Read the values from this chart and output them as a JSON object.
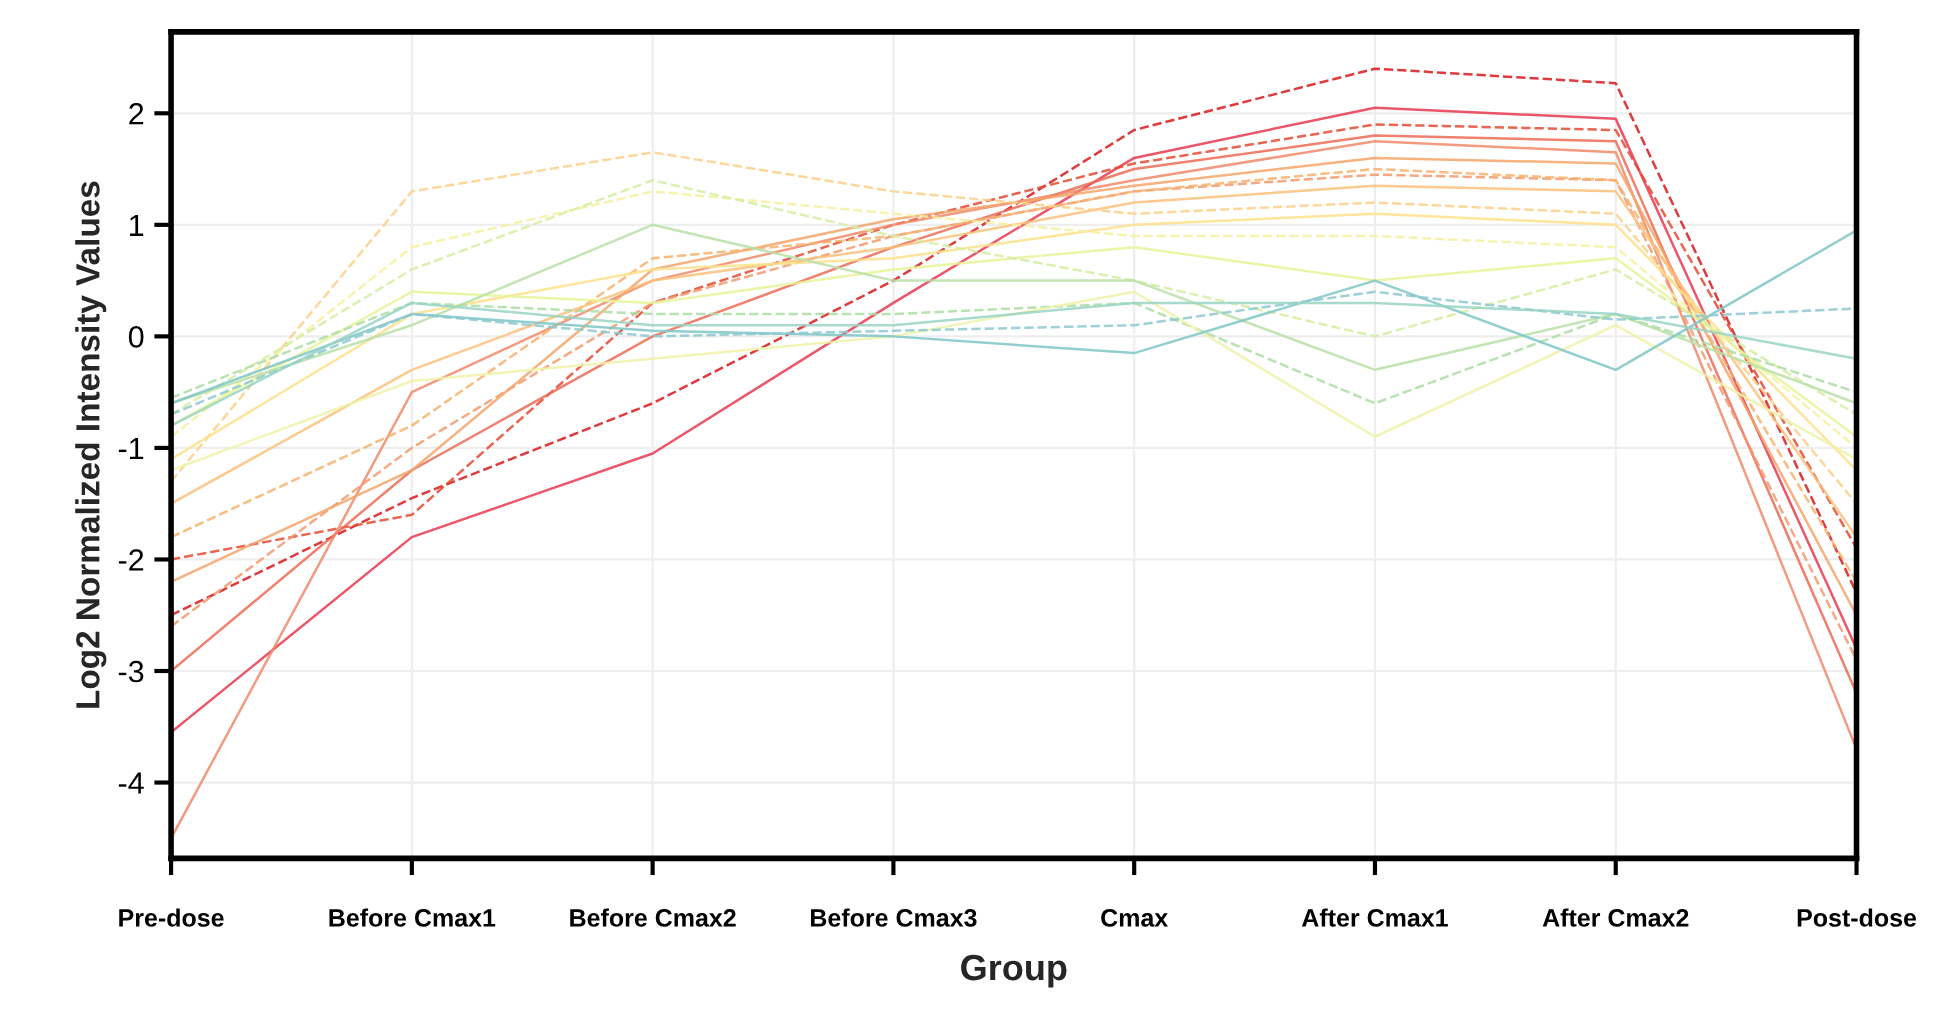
{
  "chart_data": {
    "type": "line",
    "xlabel": "Group",
    "ylabel": "Log2 Normalized Intensity Values",
    "categories": [
      "Pre-dose",
      "Before Cmax1",
      "Before Cmax2",
      "Before Cmax3",
      "Cmax",
      "After Cmax1",
      "After Cmax2",
      "Post-dose"
    ],
    "ylim": [
      -4.68,
      2.73
    ],
    "yticks": [
      -4,
      -3,
      -2,
      -1,
      0,
      1,
      2
    ],
    "grid": true,
    "marker": "none",
    "line_style": "solid",
    "series": [
      {
        "color": "#d7191c",
        "line_style": "dashed",
        "values": [
          -2.5,
          -1.45,
          -0.6,
          0.5,
          1.85,
          2.4,
          2.27,
          -2.3
        ]
      },
      {
        "color": "#e8384f",
        "values": [
          -3.55,
          -1.8,
          -1.05,
          0.3,
          1.6,
          2.05,
          1.95,
          -2.8
        ]
      },
      {
        "color": "#e34a33",
        "line_style": "dashed",
        "values": [
          -2.0,
          -1.6,
          0.3,
          1.0,
          1.55,
          1.9,
          1.85,
          -1.9
        ]
      },
      {
        "color": "#ec6b56",
        "values": [
          -3.0,
          -1.2,
          0.0,
          0.8,
          1.5,
          1.8,
          1.75,
          -3.2
        ]
      },
      {
        "color": "#f08a6a",
        "values": [
          -4.5,
          -0.5,
          0.5,
          1.0,
          1.4,
          1.75,
          1.65,
          -3.7
        ]
      },
      {
        "color": "#f29a6e",
        "line_style": "dashed",
        "values": [
          -2.6,
          -1.0,
          0.3,
          0.9,
          1.3,
          1.45,
          1.4,
          -2.9
        ]
      },
      {
        "color": "#f4a46a",
        "values": [
          -2.2,
          -1.2,
          0.6,
          1.05,
          1.35,
          1.6,
          1.55,
          -2.5
        ]
      },
      {
        "color": "#f7b26b",
        "line_style": "dashed",
        "values": [
          -1.8,
          -0.8,
          0.7,
          0.9,
          1.3,
          1.5,
          1.4,
          -2.2
        ]
      },
      {
        "color": "#fbc07a",
        "values": [
          -1.5,
          -0.3,
          0.5,
          0.8,
          1.2,
          1.35,
          1.3,
          -1.8
        ]
      },
      {
        "color": "#fdcf8a",
        "line_style": "dashed",
        "values": [
          -1.3,
          1.3,
          1.65,
          1.3,
          1.1,
          1.2,
          1.1,
          -1.5
        ]
      },
      {
        "color": "#fee08b",
        "values": [
          -1.1,
          0.2,
          0.6,
          0.7,
          1.0,
          1.1,
          1.0,
          -1.2
        ]
      },
      {
        "color": "#f6f0a0",
        "line_style": "dashed",
        "values": [
          -0.9,
          0.8,
          1.3,
          1.1,
          0.9,
          0.9,
          0.8,
          -1.0
        ]
      },
      {
        "color": "#e6f598",
        "values": [
          -0.8,
          0.4,
          0.3,
          0.6,
          0.8,
          0.5,
          0.7,
          -0.9
        ]
      },
      {
        "color": "#d5eda0",
        "line_style": "dashed",
        "values": [
          -0.7,
          0.6,
          1.4,
          0.9,
          0.5,
          0.0,
          0.6,
          -0.7
        ]
      },
      {
        "color": "#b9e0a6",
        "values": [
          -0.6,
          0.1,
          1.0,
          0.5,
          0.5,
          -0.3,
          0.2,
          -0.6
        ]
      },
      {
        "color": "#abdda4",
        "line_style": "dashed",
        "values": [
          -0.55,
          0.3,
          0.2,
          0.2,
          0.3,
          -0.6,
          0.2,
          -0.5
        ]
      },
      {
        "color": "#eef2a8",
        "values": [
          -1.2,
          -0.4,
          -0.2,
          0.0,
          0.4,
          -0.9,
          0.1,
          -1.1
        ]
      },
      {
        "color": "#7fc6c6",
        "values": [
          -0.6,
          0.2,
          0.05,
          0.0,
          -0.15,
          0.5,
          -0.3,
          0.95
        ]
      },
      {
        "color": "#8cc8d0",
        "line_style": "dashed",
        "values": [
          -0.7,
          0.2,
          0.0,
          0.05,
          0.1,
          0.4,
          0.15,
          0.25
        ]
      },
      {
        "color": "#99d3c4",
        "values": [
          -0.8,
          0.3,
          0.1,
          0.1,
          0.3,
          0.3,
          0.2,
          -0.2
        ]
      }
    ]
  }
}
